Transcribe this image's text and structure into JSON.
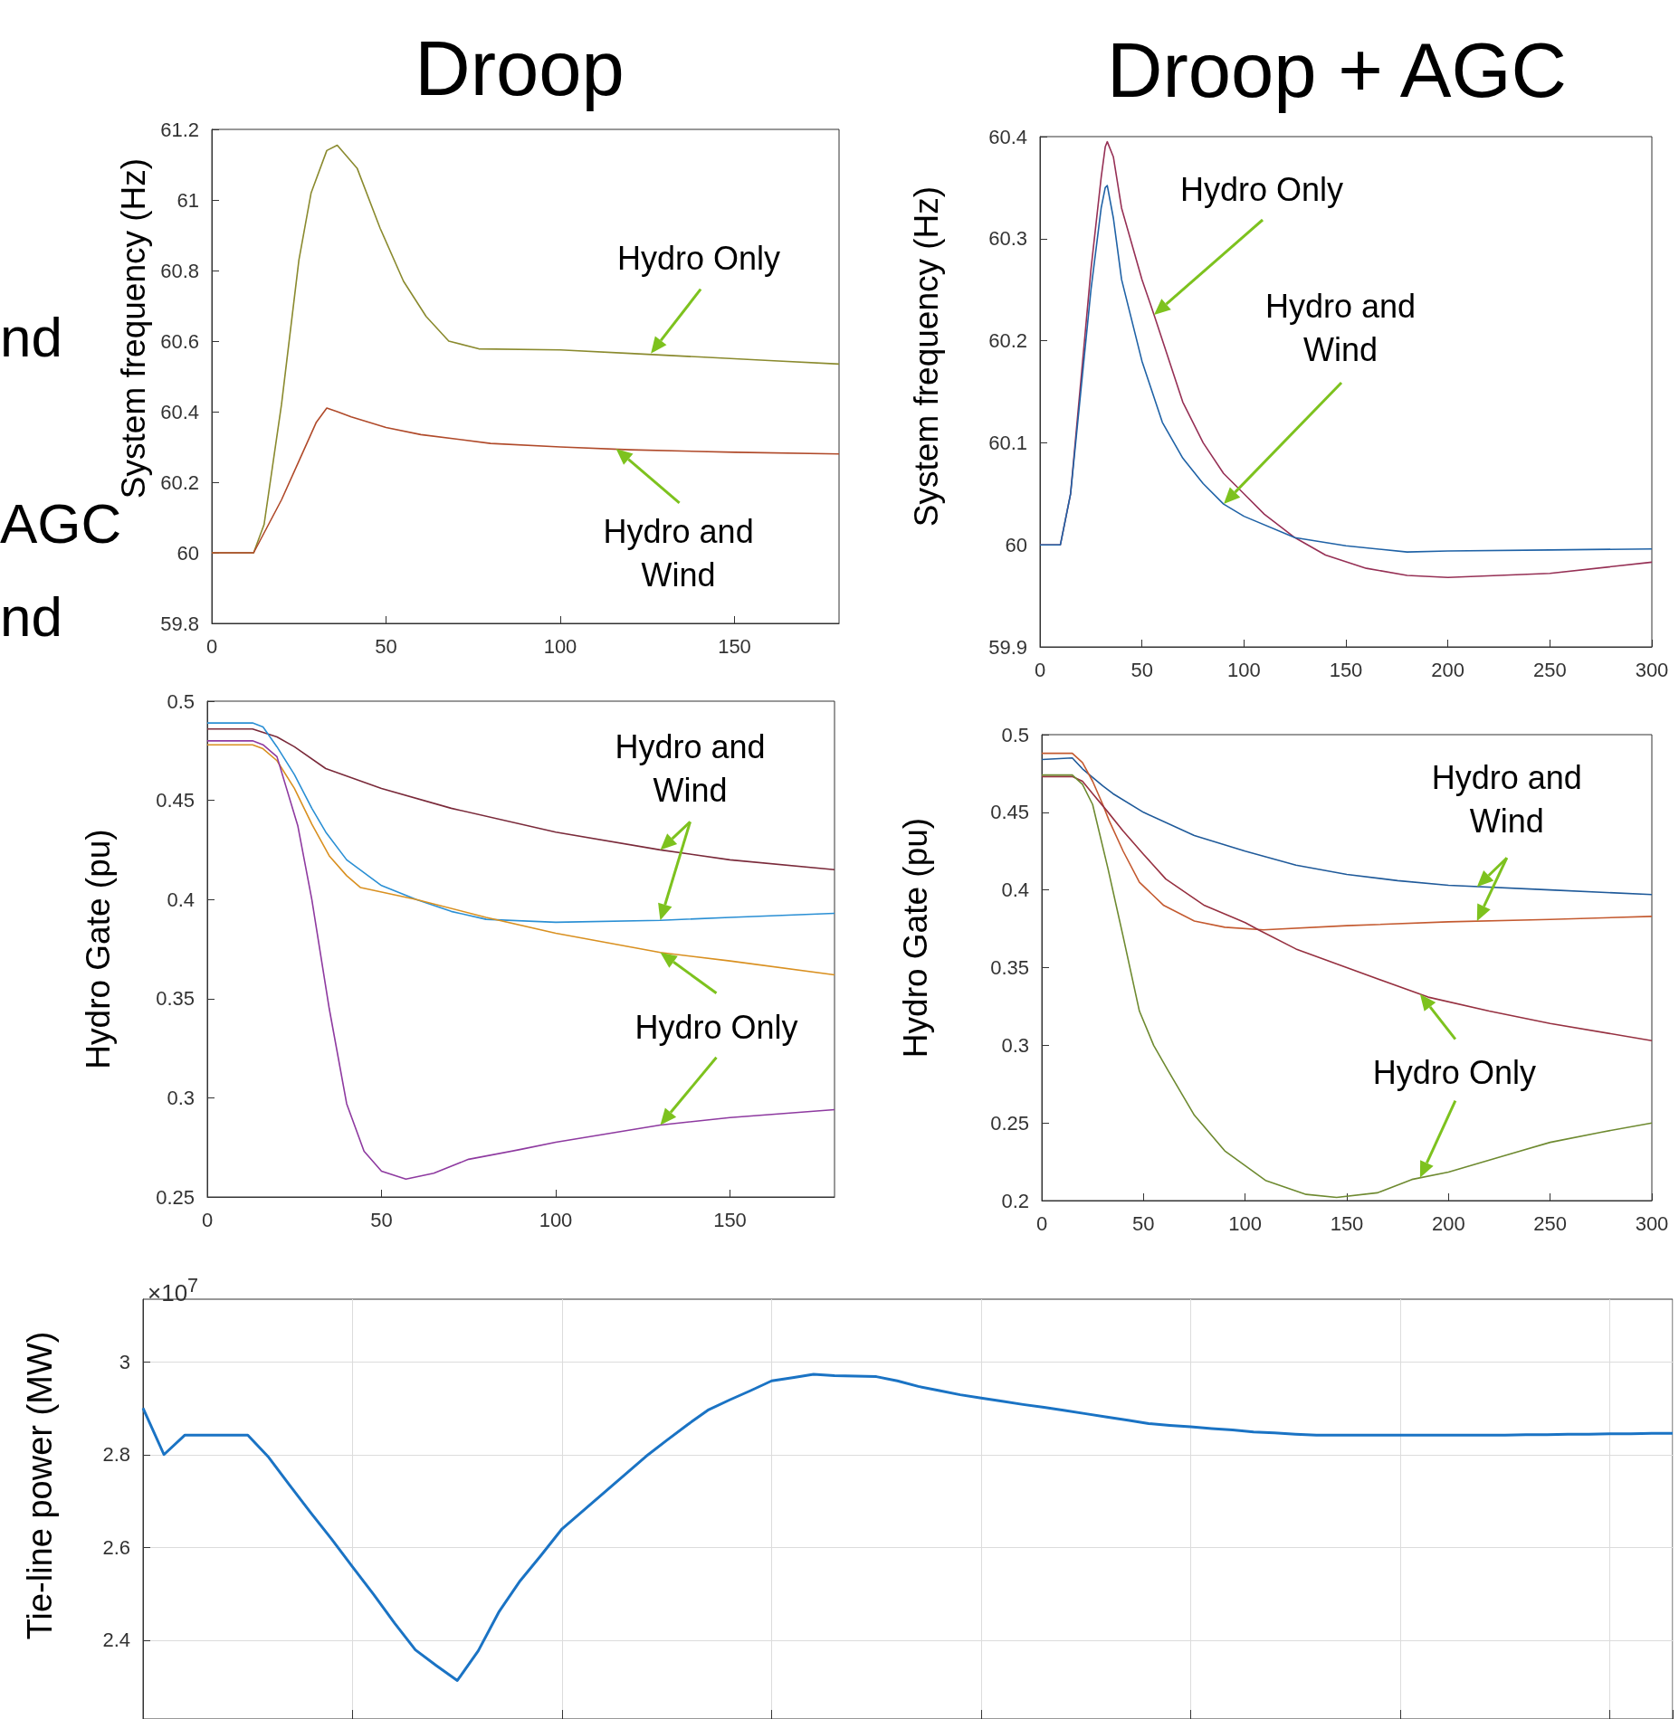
{
  "chart_data": [
    {
      "type": "line",
      "title": "Droop",
      "ylabel": "System frequency (Hz)",
      "xlim": [
        0,
        180
      ],
      "xticks": [
        0,
        50,
        100,
        150
      ],
      "ylim": [
        59.8,
        61.2
      ],
      "yticks": [
        59.8,
        60,
        60.2,
        60.4,
        60.6,
        60.8,
        61,
        61.2
      ],
      "grid": false,
      "marker": "none",
      "series": [
        {
          "color": "#8a8a2e",
          "x": [
            0,
            12,
            15,
            20,
            25,
            28.5,
            33,
            36,
            41.7,
            48.3,
            55,
            61.5,
            68,
            76.6,
            100,
            120,
            140,
            160,
            180
          ],
          "values": [
            60,
            60,
            60.08,
            60.42,
            60.83,
            61.02,
            61.14,
            61.155,
            61.09,
            60.92,
            60.77,
            60.67,
            60.6,
            60.578,
            60.575,
            60.565,
            60.555,
            60.545,
            60.535
          ]
        },
        {
          "color": "#b04a2a",
          "x": [
            0,
            12,
            20,
            25,
            30,
            33,
            36,
            40,
            50,
            60,
            80,
            100,
            120,
            150,
            180
          ],
          "values": [
            60,
            60,
            60.15,
            60.26,
            60.37,
            60.41,
            60.4,
            60.385,
            60.355,
            60.335,
            60.31,
            60.3,
            60.292,
            60.285,
            60.28
          ]
        }
      ],
      "annotations": [
        {
          "text": "Hydro Only",
          "x": 126,
          "y": 60.565
        },
        {
          "text": "Hydro and\nWind",
          "x": 116,
          "y": 60.295
        }
      ]
    },
    {
      "type": "line",
      "title": "Droop + AGC",
      "ylabel": "System frequency (Hz)",
      "xlim": [
        0,
        300
      ],
      "xticks": [
        0,
        50,
        100,
        150,
        200,
        250,
        300
      ],
      "ylim": [
        59.9,
        60.4
      ],
      "yticks": [
        59.9,
        60,
        60.1,
        60.2,
        60.3,
        60.4
      ],
      "grid": false,
      "marker": "none",
      "series": [
        {
          "color": "#963055",
          "x": [
            0,
            10,
            15,
            20,
            25,
            30,
            32,
            33,
            36,
            40,
            50,
            56,
            70,
            80,
            90,
            100,
            110,
            125,
            140,
            160,
            180,
            200,
            250,
            300
          ],
          "values": [
            60,
            60,
            60.05,
            60.16,
            60.27,
            60.36,
            60.39,
            60.395,
            60.38,
            60.33,
            60.26,
            60.225,
            60.14,
            60.1,
            60.07,
            60.05,
            60.03,
            60.007,
            59.99,
            59.977,
            59.97,
            59.968,
            59.972,
            59.983
          ]
        },
        {
          "color": "#1f62a6",
          "x": [
            0,
            10,
            15,
            20,
            25,
            30,
            32,
            33,
            36,
            40,
            50,
            60,
            70,
            80,
            90,
            100,
            125,
            150,
            180,
            200,
            250,
            300
          ],
          "values": [
            60,
            60,
            60.05,
            60.15,
            60.25,
            60.33,
            60.35,
            60.352,
            60.32,
            60.26,
            60.18,
            60.12,
            60.085,
            60.06,
            60.04,
            60.028,
            60.007,
            59.999,
            59.993,
            59.994,
            59.995,
            59.996
          ]
        }
      ],
      "annotations": [
        "Hydro Only",
        "Hydro and\nWind"
      ]
    },
    {
      "type": "line",
      "ylabel": "Hydro Gate (pu)",
      "xlim": [
        0,
        180
      ],
      "xticks": [
        0,
        50,
        100,
        150
      ],
      "ylim": [
        0.25,
        0.5
      ],
      "yticks": [
        0.25,
        0.3,
        0.35,
        0.4,
        0.45,
        0.5
      ],
      "grid": false,
      "marker": "none",
      "series": [
        {
          "color": "#7a2a3a",
          "x": [
            0,
            13,
            20,
            25,
            34,
            50,
            70,
            100,
            130,
            150,
            180
          ],
          "values": [
            0.486,
            0.486,
            0.482,
            0.477,
            0.466,
            0.456,
            0.446,
            0.434,
            0.425,
            0.42,
            0.415
          ]
        },
        {
          "color": "#2a8fd4",
          "x": [
            0,
            13,
            16,
            20,
            25,
            30,
            34,
            40,
            50,
            60,
            70,
            80,
            100,
            130,
            150,
            180
          ],
          "values": [
            0.489,
            0.489,
            0.487,
            0.477,
            0.463,
            0.446,
            0.434,
            0.42,
            0.407,
            0.4,
            0.394,
            0.39,
            0.3885,
            0.3895,
            0.391,
            0.393
          ]
        },
        {
          "color": "#d99020",
          "x": [
            0,
            13,
            16,
            20,
            25,
            30,
            35,
            40,
            44,
            60,
            80,
            100,
            130,
            150,
            180
          ],
          "values": [
            0.478,
            0.478,
            0.476,
            0.47,
            0.456,
            0.438,
            0.422,
            0.412,
            0.406,
            0.4,
            0.391,
            0.383,
            0.3733,
            0.369,
            0.362
          ]
        },
        {
          "color": "#8e3aa0",
          "x": [
            0,
            13,
            16,
            20,
            26,
            30,
            35,
            40,
            45,
            50,
            57,
            65,
            75,
            90,
            100,
            130,
            150,
            180
          ],
          "values": [
            0.48,
            0.48,
            0.478,
            0.472,
            0.437,
            0.4,
            0.345,
            0.297,
            0.273,
            0.263,
            0.259,
            0.262,
            0.269,
            0.274,
            0.2776,
            0.2863,
            0.29,
            0.294
          ]
        }
      ],
      "annotations": [
        {
          "text": "Hydro and\nWind",
          "x": 130,
          "y": 0.425
        },
        {
          "text": "Hydro Only",
          "x": 130,
          "y": 0.3733
        }
      ]
    },
    {
      "type": "line",
      "ylabel": "Hydro Gate (pu)",
      "xlim": [
        0,
        300
      ],
      "xticks": [
        0,
        50,
        100,
        150,
        200,
        250,
        300
      ],
      "ylim": [
        0.2,
        0.5
      ],
      "yticks": [
        0.2,
        0.25,
        0.3,
        0.35,
        0.4,
        0.45,
        0.5
      ],
      "grid": false,
      "marker": "none",
      "series": [
        {
          "color": "#1f5a9a",
          "x": [
            0,
            15,
            20,
            30,
            35,
            50,
            75,
            100,
            125,
            150,
            175,
            200,
            250,
            300
          ],
          "values": [
            0.484,
            0.485,
            0.478,
            0.467,
            0.462,
            0.45,
            0.435,
            0.425,
            0.416,
            0.41,
            0.406,
            0.403,
            0.4,
            0.397
          ]
        },
        {
          "color": "#c45a30",
          "x": [
            0,
            15,
            20,
            25,
            30,
            33,
            40,
            48,
            60,
            75,
            90,
            109,
            150,
            200,
            250,
            300
          ],
          "values": [
            0.488,
            0.488,
            0.482,
            0.47,
            0.455,
            0.445,
            0.425,
            0.405,
            0.39,
            0.38,
            0.376,
            0.3743,
            0.377,
            0.3795,
            0.381,
            0.383
          ]
        },
        {
          "color": "#963040",
          "x": [
            0,
            15,
            20,
            25,
            32,
            40,
            50,
            61,
            80,
            100,
            107,
            125,
            150,
            190,
            220,
            250,
            300
          ],
          "values": [
            0.473,
            0.473,
            0.47,
            0.462,
            0.451,
            0.438,
            0.423,
            0.407,
            0.39,
            0.379,
            0.374,
            0.362,
            0.35,
            0.331,
            0.322,
            0.314,
            0.303
          ]
        },
        {
          "color": "#6e8a30",
          "x": [
            0,
            15,
            20,
            25,
            32.5,
            40,
            48,
            55,
            62,
            75,
            90,
            110,
            130,
            145,
            165,
            182,
            200,
            225,
            250,
            275,
            300
          ],
          "values": [
            0.474,
            0.474,
            0.468,
            0.455,
            0.414,
            0.37,
            0.322,
            0.3,
            0.284,
            0.255,
            0.232,
            0.213,
            0.204,
            0.202,
            0.205,
            0.2136,
            0.2184,
            0.228,
            0.2375,
            0.244,
            0.25
          ]
        }
      ],
      "annotations": [
        {
          "text": "Hydro and\nWind",
          "x": 214,
          "y": 0.402
        },
        {
          "text": "Hydro Only",
          "x": 186,
          "y": 0.333
        }
      ]
    },
    {
      "type": "line",
      "ylabel": "Tie-line power (MW)",
      "ylim": [
        2.23,
        3.135
      ],
      "yticks": [
        2.4,
        2.6,
        2.8,
        3
      ],
      "grid": true,
      "marker": "none",
      "tick_labels": "y",
      "categories": [
        null,
        null,
        null,
        null,
        null,
        null,
        null,
        null,
        null,
        null,
        null,
        null,
        null,
        null,
        null,
        null,
        null,
        null,
        null,
        null,
        null,
        null,
        null,
        null,
        null,
        null,
        null,
        null,
        null,
        null,
        null,
        null,
        null,
        null,
        null,
        null,
        null,
        null,
        null,
        null,
        null,
        null,
        null,
        null,
        null,
        null,
        null,
        null,
        null,
        null,
        null,
        null,
        null,
        null,
        null,
        null,
        null,
        null,
        null,
        null,
        null,
        null,
        null,
        null,
        null,
        null,
        null,
        null,
        null,
        null,
        null,
        null,
        null,
        null
      ],
      "series": [
        {
          "color": "#1a73c4",
          "values": [
            2.9,
            2.8,
            2.842,
            2.842,
            2.842,
            2.842,
            2.794,
            2.734,
            2.675,
            2.618,
            2.558,
            2.499,
            2.437,
            2.379,
            2.345,
            2.313,
            2.377,
            2.462,
            2.528,
            2.583,
            2.64,
            2.679,
            2.718,
            2.757,
            2.796,
            2.831,
            2.865,
            2.897,
            2.918,
            2.938,
            2.959,
            2.966,
            2.973,
            2.97,
            2.969,
            2.968,
            2.959,
            2.947,
            2.938,
            2.929,
            2.922,
            2.915,
            2.908,
            2.902,
            2.895,
            2.888,
            2.881,
            2.874,
            2.867,
            2.863,
            2.86,
            2.856,
            2.853,
            2.849,
            2.847,
            2.844,
            2.842,
            2.842,
            2.842,
            2.842,
            2.842,
            2.842,
            2.842,
            2.842,
            2.842,
            2.842,
            2.843,
            2.843,
            2.844,
            2.844,
            2.845,
            2.845,
            2.846,
            2.846
          ]
        }
      ],
      "annotations": [
        "×10$^{7}$"
      ]
    },
    {
      "type": "other",
      "annotations": [
        "nd",
        "AGC",
        "nd"
      ]
    }
  ]
}
